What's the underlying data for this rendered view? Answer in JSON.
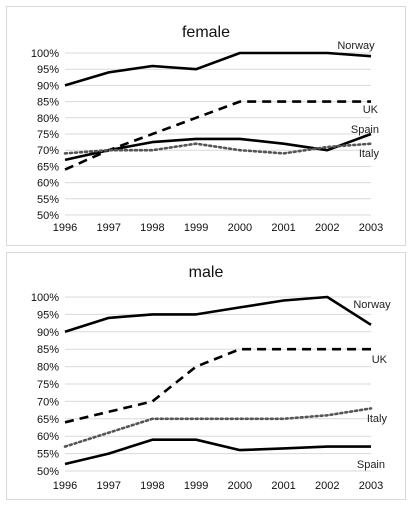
{
  "chart_data": [
    {
      "type": "line",
      "title": "female",
      "x": [
        "1996",
        "1997",
        "1998",
        "1999",
        "2000",
        "2001",
        "2002",
        "2003"
      ],
      "y_ticks": [
        "100%",
        "95%",
        "90%",
        "85%",
        "80%",
        "75%",
        "70%",
        "65%",
        "60%",
        "55%",
        "50%"
      ],
      "ylim": [
        50,
        100
      ],
      "grid": true,
      "series": [
        {
          "name": "Norway",
          "style": "solid",
          "color": "#000000",
          "values": [
            90,
            94,
            96,
            95,
            100,
            100,
            100,
            99
          ]
        },
        {
          "name": "UK",
          "style": "dashed",
          "color": "#000000",
          "values": [
            64,
            70,
            75,
            80,
            85,
            85,
            85,
            85
          ]
        },
        {
          "name": "Spain",
          "style": "solid",
          "color": "#000000",
          "values": [
            67,
            70,
            72.5,
            73.5,
            73.5,
            72,
            70,
            75
          ]
        },
        {
          "name": "Italy",
          "style": "dotted",
          "color": "#555555",
          "values": [
            69,
            70,
            70,
            72,
            70,
            69,
            71,
            72
          ]
        }
      ]
    },
    {
      "type": "line",
      "title": "male",
      "x": [
        "1996",
        "1997",
        "1998",
        "1999",
        "2000",
        "2001",
        "2002",
        "2003"
      ],
      "y_ticks": [
        "100%",
        "95%",
        "90%",
        "85%",
        "80%",
        "75%",
        "70%",
        "65%",
        "60%",
        "55%",
        "50%"
      ],
      "ylim": [
        50,
        100
      ],
      "grid": true,
      "series": [
        {
          "name": "Norway",
          "style": "solid",
          "color": "#000000",
          "values": [
            90,
            94,
            95,
            95,
            97,
            99,
            100,
            92
          ]
        },
        {
          "name": "UK",
          "style": "dashed",
          "color": "#000000",
          "values": [
            64,
            67,
            70,
            80,
            85,
            85,
            85,
            85
          ]
        },
        {
          "name": "Italy",
          "style": "dotted",
          "color": "#555555",
          "values": [
            57,
            61,
            65,
            65,
            65,
            65,
            66,
            68
          ]
        },
        {
          "name": "Spain",
          "style": "solid",
          "color": "#000000",
          "values": [
            52,
            55,
            59,
            59,
            56,
            56.5,
            57,
            57
          ]
        }
      ]
    }
  ]
}
